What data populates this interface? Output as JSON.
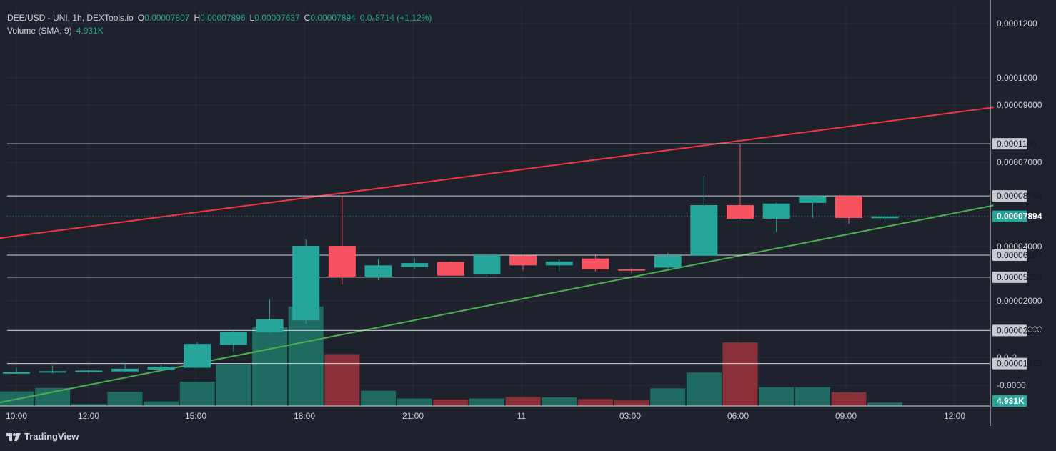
{
  "header": {
    "symbol": "DEE/USD - UNI, 1h, DEXTools.io",
    "open_key": "O",
    "open": "0.00007807",
    "high_key": "H",
    "high": "0.00007896",
    "low_key": "L",
    "low": "0.00007637",
    "close_key": "C",
    "close": "0.00007894",
    "change": "0.0₆8714 (+1.12%)",
    "volume_label": "Volume (SMA, 9)",
    "volume_value": "4.931K"
  },
  "brand": {
    "name": "TradingView"
  },
  "colors": {
    "background": "#1e222d",
    "up": "#26a69a",
    "down": "#f6525f",
    "resistance_line": "#f23645",
    "support_line": "#4caf50",
    "level_line": "#d1d4dc",
    "last_price_tag": "#26a69a",
    "axis_text": "#d1d4dc",
    "grid": "#2a2e39"
  },
  "chart_data": {
    "type": "candlestick",
    "y_axis_ticks": [
      "0.0001200",
      "0.0001000",
      "0.00009000",
      "0.00007000",
      "0.00004000",
      "0.00002000",
      "0.00001000",
      "0.0₅2",
      "-0.0000"
    ],
    "x_axis_ticks": [
      "10:00",
      "12:00",
      "15:00",
      "18:00",
      "21:00",
      "11",
      "03:00",
      "06:00",
      "09:00",
      "12:00"
    ],
    "candles": [
      {
        "open": 1.02e-05,
        "high": 1.28e-05,
        "low": 1.02e-05,
        "close": 1.1e-05
      },
      {
        "open": 1.07e-05,
        "high": 1.38e-05,
        "low": 1.03e-05,
        "close": 1.13e-05
      },
      {
        "open": 1.1e-05,
        "high": 1.18e-05,
        "low": 1.06e-05,
        "close": 1.16e-05
      },
      {
        "open": 1.12e-05,
        "high": 1.48e-05,
        "low": 1.1e-05,
        "close": 1.24e-05
      },
      {
        "open": 1.2e-05,
        "high": 1.4e-05,
        "low": 1.16e-05,
        "close": 1.33e-05
      },
      {
        "open": 1.28e-05,
        "high": 2.4e-05,
        "low": 1.27e-05,
        "close": 2.32e-05
      },
      {
        "open": 2.28e-05,
        "high": 2.95e-05,
        "low": 1.98e-05,
        "close": 2.85e-05
      },
      {
        "open": 2.83e-05,
        "high": 4.28e-05,
        "low": 2.78e-05,
        "close": 3.4e-05
      },
      {
        "open": 3.35e-05,
        "high": 6.9e-05,
        "low": 3.2e-05,
        "close": 6.6e-05
      },
      {
        "open": 6.6e-05,
        "high": 8.78e-05,
        "low": 4.9e-05,
        "close": 5.23e-05
      },
      {
        "open": 5.23e-05,
        "high": 6.03e-05,
        "low": 5.1e-05,
        "close": 5.75e-05
      },
      {
        "open": 5.68e-05,
        "high": 6.05e-05,
        "low": 5.6e-05,
        "close": 5.85e-05
      },
      {
        "open": 5.9e-05,
        "high": 5.92e-05,
        "low": 5.3e-05,
        "close": 5.3e-05
      },
      {
        "open": 5.35e-05,
        "high": 6.2e-05,
        "low": 5.25e-05,
        "close": 6.2e-05
      },
      {
        "open": 6.18e-05,
        "high": 6.2e-05,
        "low": 5.52e-05,
        "close": 5.75e-05
      },
      {
        "open": 5.75e-05,
        "high": 6e-05,
        "low": 5.5e-05,
        "close": 5.92e-05
      },
      {
        "open": 6.05e-05,
        "high": 6.25e-05,
        "low": 5.48e-05,
        "close": 5.58e-05
      },
      {
        "open": 5.58e-05,
        "high": 5.62e-05,
        "low": 5.4e-05,
        "close": 5.55e-05
      },
      {
        "open": 5.65e-05,
        "high": 6.3e-05,
        "low": 5.6e-05,
        "close": 6.17e-05
      },
      {
        "open": 6.17e-05,
        "high": 9.65e-05,
        "low": 6.17e-05,
        "close": 8.38e-05
      },
      {
        "open": 8.38e-05,
        "high": 0.0001106,
        "low": 7.75e-05,
        "close": 7.79e-05
      },
      {
        "open": 7.79e-05,
        "high": 8.5e-05,
        "low": 7.2e-05,
        "close": 8.45e-05
      },
      {
        "open": 8.48e-05,
        "high": 8.78e-05,
        "low": 7.8e-05,
        "close": 8.78e-05
      },
      {
        "open": 8.78e-05,
        "high": 8.78e-05,
        "low": 7.55e-05,
        "close": 7.82e-05
      },
      {
        "open": 7.81e-05,
        "high": 7.9e-05,
        "low": 7.62e-05,
        "close": 7.89e-05
      }
    ],
    "volumes": [
      1.32e-05,
      1.63e-05,
      1.8e-06,
      1.28e-05,
      4.2e-06,
      2.2e-05,
      3.78e-05,
      7.12e-05,
      9e-05,
      4.7e-05,
      1.38e-05,
      6.8e-06,
      5.8e-06,
      6.8e-06,
      8.2e-06,
      7.8e-06,
      6.2e-06,
      5e-06,
      1.6e-05,
      3.02e-05,
      5.75e-05,
      1.7e-05,
      1.7e-05,
      1.25e-05,
      3e-06
    ],
    "horizontal_levels": [
      "0.0001106",
      "0.00008784",
      "0.00006197",
      "0.00005233",
      "0.00002909",
      "0.00001463"
    ],
    "last_price": "0.00007894",
    "last_volume": "4.931K",
    "trendlines": [
      {
        "name": "resistance",
        "points": [
          [
            -0.5,
            6.93e-05
          ],
          [
            27.0,
            0.0001265
          ]
        ]
      },
      {
        "name": "support",
        "points": [
          [
            -0.5,
            -2.5e-06
          ],
          [
            27.0,
            8.37e-05
          ]
        ]
      }
    ],
    "grid": true
  }
}
